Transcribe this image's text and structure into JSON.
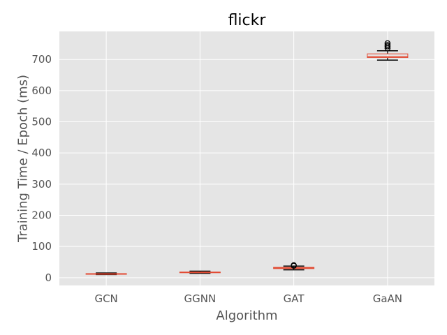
{
  "chart_data": {
    "type": "box",
    "title": "flickr",
    "xlabel": "Algorithm",
    "ylabel": "Training Time / Epoch (ms)",
    "ylim": [
      -25,
      790
    ],
    "yticks": [
      0,
      100,
      200,
      300,
      400,
      500,
      600,
      700
    ],
    "grid": true,
    "categories": [
      "GCN",
      "GGNN",
      "GAT",
      "GaAN"
    ],
    "boxes": [
      {
        "category": "GCN",
        "whislo": 10,
        "q1": 11,
        "median": 12,
        "q3": 13,
        "whishi": 15,
        "fliers": []
      },
      {
        "category": "GGNN",
        "whislo": 14,
        "q1": 16,
        "median": 17,
        "q3": 18,
        "whishi": 21,
        "fliers": []
      },
      {
        "category": "GAT",
        "whislo": 25,
        "q1": 29,
        "median": 31,
        "q3": 33,
        "whishi": 37,
        "fliers": [
          38,
          40
        ]
      },
      {
        "category": "GaAN",
        "whislo": 698,
        "q1": 706,
        "median": 710,
        "q3": 718,
        "whishi": 728,
        "fliers": [
          736,
          742,
          746,
          752
        ]
      }
    ],
    "colors": {
      "background": "#e5e5e5",
      "grid": "#ffffff",
      "box": "#e24a33",
      "median": "#e24a33",
      "whisker": "#000000",
      "flier": "#000000"
    }
  }
}
